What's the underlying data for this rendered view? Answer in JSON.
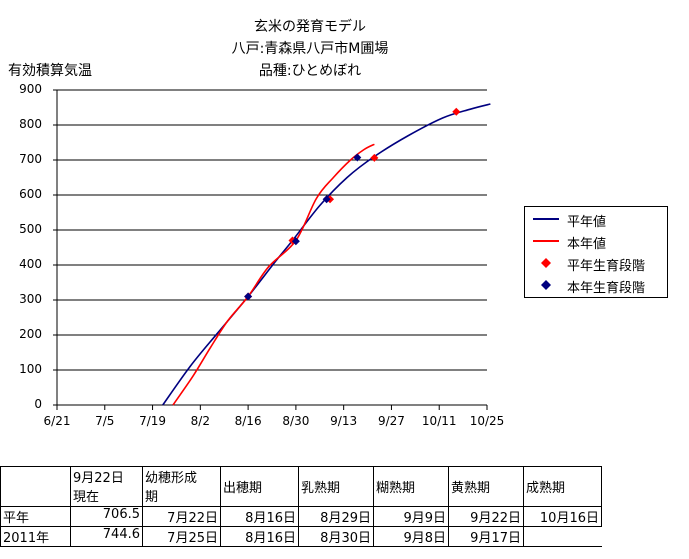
{
  "title": [
    "玄米の発育モデル",
    "八戸:青森県八戸市M圃場",
    "品種:ひとめぼれ"
  ],
  "ylabel": "有効積算気温",
  "colors": {
    "normal_line": "#000080",
    "this_year_line": "#ff0000",
    "normal_marker": "#ff0000",
    "this_year_marker": "#000080"
  },
  "legend": [
    {
      "label": "平年値",
      "kind": "line",
      "color": "#000080"
    },
    {
      "label": "本年値",
      "kind": "line",
      "color": "#ff0000"
    },
    {
      "label": "平年生育段階",
      "kind": "diamond",
      "color": "#ff0000"
    },
    {
      "label": "本年生育段階",
      "kind": "diamond",
      "color": "#000080"
    }
  ],
  "chart_data": {
    "type": "line",
    "xlabel": "",
    "ylabel": "有効積算気温",
    "x_ticks": [
      "6/21",
      "7/5",
      "7/19",
      "8/2",
      "8/16",
      "8/30",
      "9/13",
      "9/27",
      "10/11",
      "10/25"
    ],
    "x_range": [
      "6/21",
      "10/25"
    ],
    "y_ticks": [
      0,
      100,
      200,
      300,
      400,
      500,
      600,
      700,
      800,
      900
    ],
    "ylim": [
      0,
      900
    ],
    "grid": "horizontal",
    "legend_position": "right",
    "series": [
      {
        "name": "平年値",
        "type": "line",
        "x": [
          "7/22",
          "7/30",
          "8/7",
          "8/16",
          "8/24",
          "8/29",
          "9/6",
          "9/14",
          "9/22",
          "10/2",
          "10/12",
          "10/20",
          "10/26"
        ],
        "y": [
          0,
          110,
          205,
          310,
          410,
          470,
          570,
          650,
          710,
          770,
          820,
          845,
          860
        ]
      },
      {
        "name": "本年値",
        "type": "line",
        "x": [
          "7/25",
          "7/31",
          "8/5",
          "8/10",
          "8/16",
          "8/22",
          "8/30",
          "9/5",
          "9/10",
          "9/15",
          "9/19",
          "9/22"
        ],
        "y": [
          0,
          85,
          165,
          240,
          310,
          395,
          470,
          590,
          650,
          700,
          730,
          745
        ]
      },
      {
        "name": "平年生育段階",
        "type": "scatter",
        "x": [
          "8/16",
          "8/29",
          "9/9",
          "9/22",
          "10/16"
        ],
        "y": [
          310,
          470,
          588,
          706,
          838
        ]
      },
      {
        "name": "本年生育段階",
        "type": "scatter",
        "x": [
          "8/16",
          "8/30",
          "9/8",
          "9/17"
        ],
        "y": [
          310,
          468,
          588,
          707
        ]
      }
    ]
  },
  "table": {
    "headers": [
      "",
      "9月22日\n現在",
      "幼穂形成\n期",
      "出穂期",
      "乳熟期",
      "糊熟期",
      "黄熟期",
      "成熟期"
    ],
    "rows": [
      [
        "平年",
        "706.5",
        "7月22日",
        "8月16日",
        "8月29日",
        "9月9日",
        "9月22日",
        "10月16日"
      ],
      [
        "2011年",
        "744.6",
        "7月25日",
        "8月16日",
        "8月30日",
        "9月8日",
        "9月17日",
        ""
      ]
    ]
  }
}
